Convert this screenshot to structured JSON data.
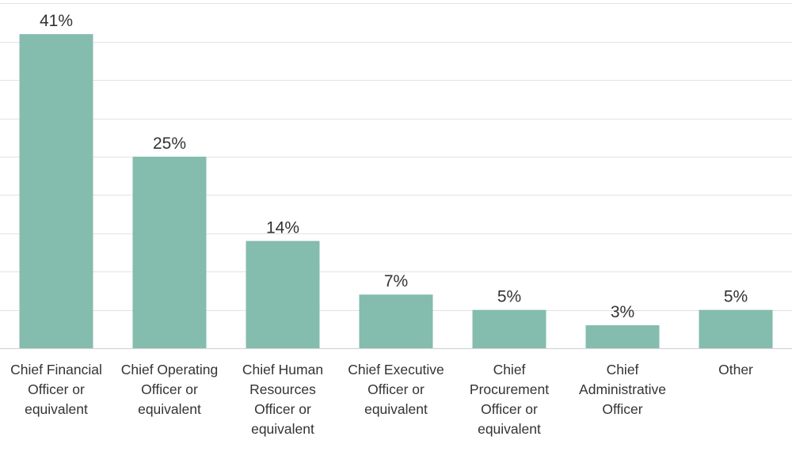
{
  "chart_data": {
    "type": "bar",
    "title": "",
    "xlabel": "",
    "ylabel": "",
    "ylim": [
      0,
      45
    ],
    "grid": true,
    "value_suffix": "%",
    "colors": {
      "bar": "#84bcad",
      "text": "#333333",
      "grid": "#e3e3e3"
    },
    "categories": [
      [
        "Chief Financial",
        "Officer or",
        "equivalent"
      ],
      [
        "Chief Operating",
        "Officer or",
        "equivalent"
      ],
      [
        "Chief Human",
        "Resources",
        "Officer or",
        "equivalent"
      ],
      [
        "Chief Executive",
        "Officer or",
        "equivalent"
      ],
      [
        "Chief",
        "Procurement",
        "Officer or",
        "equivalent"
      ],
      [
        "Chief",
        "Administrative",
        "Officer"
      ],
      [
        "Other"
      ]
    ],
    "values": [
      41,
      25,
      14,
      7,
      5,
      3,
      5
    ],
    "value_labels": [
      "41%",
      "25%",
      "14%",
      "7%",
      "5%",
      "3%",
      "5%"
    ]
  }
}
